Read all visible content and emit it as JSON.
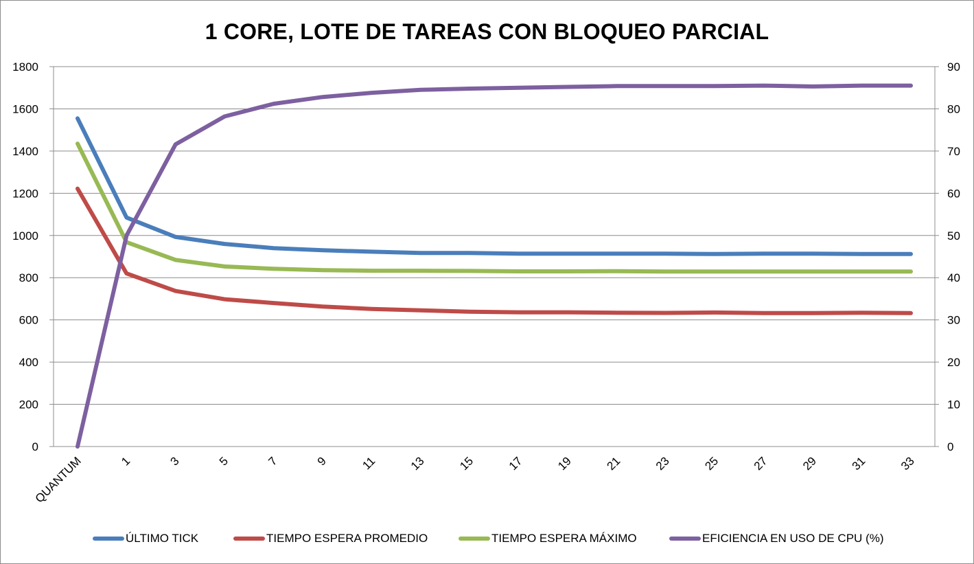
{
  "chart_data": {
    "type": "line",
    "title": "1 CORE, LOTE DE TAREAS CON BLOQUEO PARCIAL",
    "xlabel": "",
    "ylabel": "",
    "y2label": "",
    "categories": [
      "QUANTUM",
      "1",
      "3",
      "5",
      "7",
      "9",
      "11",
      "13",
      "15",
      "17",
      "19",
      "21",
      "23",
      "25",
      "27",
      "29",
      "31",
      "33"
    ],
    "ylim": [
      0,
      1800
    ],
    "yticks": [
      0,
      200,
      400,
      600,
      800,
      1000,
      1200,
      1400,
      1600,
      1800
    ],
    "y2lim": [
      0,
      90
    ],
    "y2ticks": [
      0,
      10,
      20,
      30,
      40,
      50,
      60,
      70,
      80,
      90
    ],
    "grid": true,
    "legend_position": "bottom",
    "series": [
      {
        "name": "ÚLTIMO TICK",
        "axis": "left",
        "color": "#4a7ebb",
        "values": [
          1555,
          1085,
          993,
          960,
          940,
          930,
          923,
          917,
          917,
          914,
          914,
          914,
          914,
          912,
          914,
          914,
          912,
          912
        ]
      },
      {
        "name": "TIEMPO ESPERA PROMEDIO",
        "axis": "left",
        "color": "#be4b48",
        "values": [
          1222,
          820,
          737,
          698,
          680,
          663,
          652,
          645,
          639,
          636,
          636,
          634,
          633,
          635,
          632,
          632,
          634,
          632
        ]
      },
      {
        "name": "TIEMPO ESPERA MÁXIMO",
        "axis": "left",
        "color": "#98b954",
        "values": [
          1435,
          968,
          884,
          853,
          842,
          836,
          833,
          833,
          832,
          830,
          830,
          831,
          829,
          829,
          829,
          829,
          829,
          829
        ]
      },
      {
        "name": "EFICIENCIA EN USO DE CPU (%)",
        "axis": "right",
        "color": "#7d60a0",
        "values": [
          0,
          50,
          71.6,
          78.2,
          81.2,
          82.8,
          83.8,
          84.5,
          84.8,
          85.0,
          85.2,
          85.4,
          85.4,
          85.4,
          85.5,
          85.3,
          85.5,
          85.5
        ]
      }
    ]
  }
}
